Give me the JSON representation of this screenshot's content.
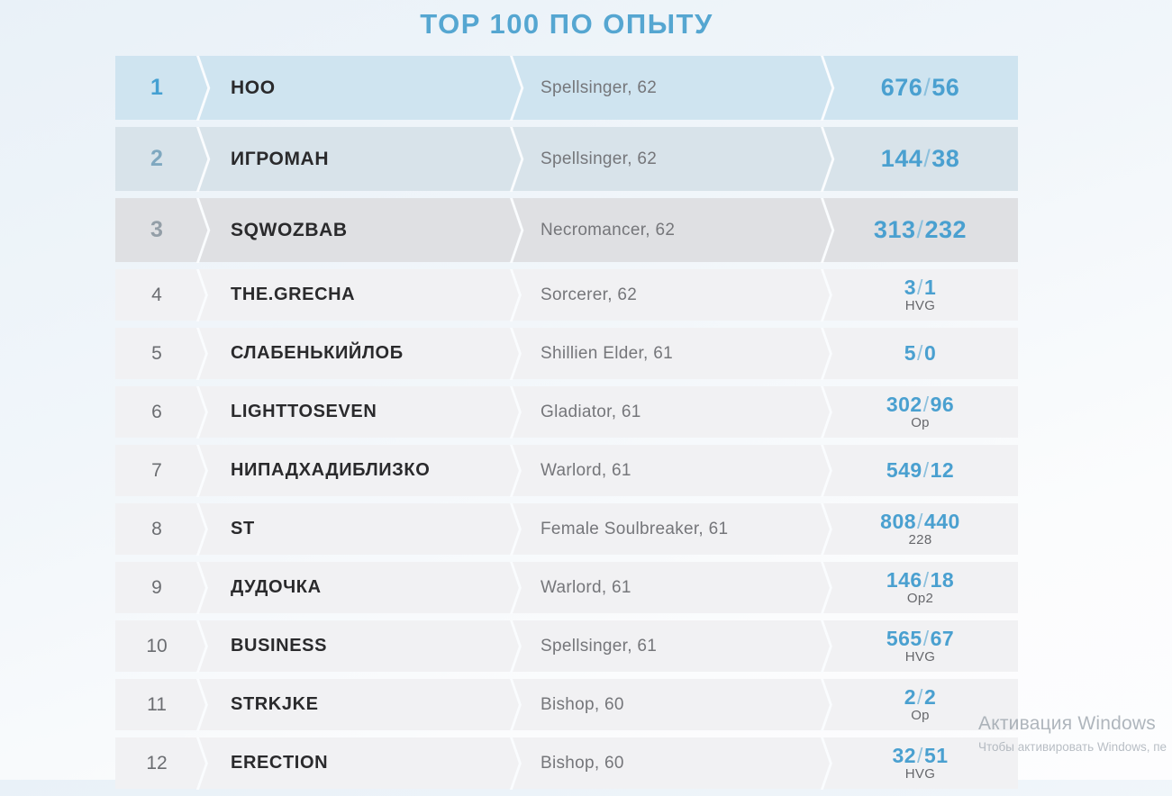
{
  "page_title": "TOP 100 ПО ОПЫТУ",
  "table": {
    "score_separator": "/",
    "rows": [
      {
        "rank": "1",
        "name": "HOO",
        "class_level": "Spellsinger, 62",
        "score_left": "676",
        "score_right": "56",
        "tag": ""
      },
      {
        "rank": "2",
        "name": "ИГРОМАН",
        "class_level": "Spellsinger, 62",
        "score_left": "144",
        "score_right": "38",
        "tag": ""
      },
      {
        "rank": "3",
        "name": "SQWOZBAB",
        "class_level": "Necromancer, 62",
        "score_left": "313",
        "score_right": "232",
        "tag": ""
      },
      {
        "rank": "4",
        "name": "THE.GRECHA",
        "class_level": "Sorcerer, 62",
        "score_left": "3",
        "score_right": "1",
        "tag": "HVG"
      },
      {
        "rank": "5",
        "name": "СЛАБЕНЬКИЙЛОБ",
        "class_level": "Shillien Elder, 61",
        "score_left": "5",
        "score_right": "0",
        "tag": ""
      },
      {
        "rank": "6",
        "name": "LIGHTTOSEVEN",
        "class_level": "Gladiator, 61",
        "score_left": "302",
        "score_right": "96",
        "tag": "Op"
      },
      {
        "rank": "7",
        "name": "НИПАДХАДИБЛИЗКО",
        "class_level": "Warlord, 61",
        "score_left": "549",
        "score_right": "12",
        "tag": ""
      },
      {
        "rank": "8",
        "name": "ST",
        "class_level": "Female Soulbreaker, 61",
        "score_left": "808",
        "score_right": "440",
        "tag": "228"
      },
      {
        "rank": "9",
        "name": "ДУДОЧКА",
        "class_level": "Warlord, 61",
        "score_left": "146",
        "score_right": "18",
        "tag": "Op2"
      },
      {
        "rank": "10",
        "name": "BUSINESS",
        "class_level": "Spellsinger, 61",
        "score_left": "565",
        "score_right": "67",
        "tag": "HVG"
      },
      {
        "rank": "11",
        "name": "STRKJKE",
        "class_level": "Bishop, 60",
        "score_left": "2",
        "score_right": "2",
        "tag": "Op"
      },
      {
        "rank": "12",
        "name": "ERECTION",
        "class_level": "Bishop, 60",
        "score_left": "32",
        "score_right": "51",
        "tag": "HVG"
      }
    ]
  },
  "watermark": {
    "line1": "Активация Windows",
    "line2": "Чтобы активировать Windows, пе"
  },
  "colors": {
    "accent_blue": "#4aa0d0",
    "title_blue": "#55a6d1",
    "slash_blue": "#8cc0dd",
    "row1_bg": "#cfe4f0",
    "row2_bg": "#d8e3ea",
    "row3_bg": "#dfe0e3",
    "row_std_bg": "#f1f1f3",
    "name_text": "#2a2a2c",
    "class_text": "#75767a",
    "rank_std_text": "#6b6d71"
  }
}
